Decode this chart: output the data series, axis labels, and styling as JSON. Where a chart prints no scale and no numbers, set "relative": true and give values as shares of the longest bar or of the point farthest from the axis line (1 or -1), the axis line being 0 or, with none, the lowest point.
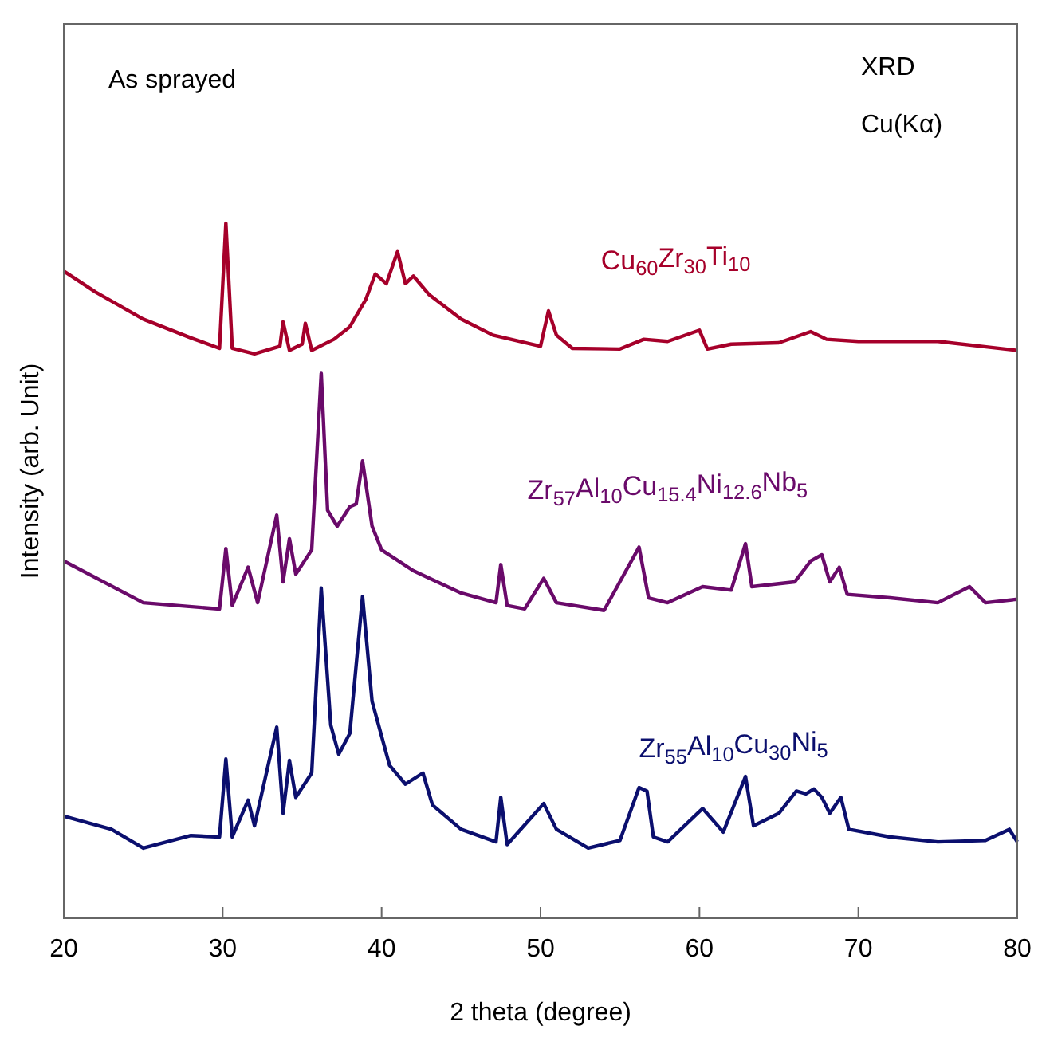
{
  "chart_data": {
    "type": "line",
    "relative": true,
    "xlabel": "2 theta (degree)",
    "ylabel": "Intensity (arb. Unit)",
    "xlim": [
      20,
      80
    ],
    "xticks": [
      20,
      30,
      40,
      50,
      60,
      70,
      80
    ],
    "grid": false,
    "legend": false,
    "marker": "none",
    "line_style": "solid",
    "annotations": [
      "As sprayed",
      "XRD",
      "Cu(Kα)"
    ],
    "series": [
      {
        "name": "Cu$_{60}$Zr$_{30}$Ti$_{10}$",
        "color": "#a6002a",
        "x": [
          20,
          22,
          25,
          28,
          29.8,
          30.2,
          30.6,
          32,
          33.6,
          33.8,
          34.2,
          35,
          35.2,
          35.6,
          37,
          38,
          39,
          39.6,
          40.3,
          41,
          41.5,
          42,
          43,
          45,
          47,
          50,
          50.5,
          51,
          52,
          55,
          56.5,
          58,
          60,
          60.5,
          62,
          65,
          67,
          68,
          70,
          75,
          80
        ],
        "values": [
          0.931,
          0.901,
          0.862,
          0.835,
          0.82,
          1.0,
          0.82,
          0.812,
          0.823,
          0.858,
          0.817,
          0.826,
          0.856,
          0.817,
          0.833,
          0.851,
          0.89,
          0.927,
          0.913,
          0.959,
          0.913,
          0.924,
          0.897,
          0.862,
          0.839,
          0.823,
          0.874,
          0.839,
          0.82,
          0.819,
          0.833,
          0.83,
          0.846,
          0.819,
          0.826,
          0.828,
          0.844,
          0.833,
          0.83,
          0.83,
          0.817
        ]
      },
      {
        "name": "Zr$_{57}$Al$_{10}$Cu$_{15.4}$Ni$_{12.6}$Nb$_{5}$",
        "color": "#6a0a6a",
        "x": [
          20,
          25,
          29.8,
          30.2,
          30.6,
          31.6,
          32.2,
          33.4,
          33.8,
          34.2,
          34.6,
          35.6,
          36.2,
          36.6,
          37.2,
          38,
          38.4,
          38.8,
          39.4,
          40,
          42,
          45,
          47.2,
          47.5,
          47.9,
          49,
          50.2,
          51,
          54,
          56.2,
          56.8,
          58,
          60.2,
          62,
          62.9,
          63.3,
          66,
          67,
          67.7,
          68.2,
          68.8,
          69.3,
          72,
          75,
          77,
          78,
          80
        ],
        "values": [
          0.514,
          0.454,
          0.445,
          0.532,
          0.45,
          0.505,
          0.454,
          0.58,
          0.484,
          0.546,
          0.495,
          0.53,
          0.784,
          0.587,
          0.564,
          0.592,
          0.596,
          0.658,
          0.564,
          0.53,
          0.5,
          0.468,
          0.454,
          0.509,
          0.45,
          0.445,
          0.489,
          0.454,
          0.443,
          0.534,
          0.461,
          0.454,
          0.477,
          0.472,
          0.539,
          0.477,
          0.484,
          0.514,
          0.523,
          0.484,
          0.505,
          0.466,
          0.461,
          0.454,
          0.477,
          0.454,
          0.459
        ]
      },
      {
        "name": "Zr$_{55}$Al$_{10}$Cu$_{30}$Ni$_{5}$",
        "color": "#0b0f6e",
        "x": [
          20,
          23,
          25,
          28,
          29.8,
          30.2,
          30.6,
          31.6,
          32,
          33.4,
          33.8,
          34.2,
          34.6,
          35.6,
          36.2,
          36.8,
          37.3,
          38,
          38.8,
          39.4,
          40.5,
          41.5,
          42.6,
          43.2,
          45,
          47.2,
          47.5,
          47.9,
          50.2,
          51,
          53,
          55,
          56.2,
          56.7,
          57.1,
          58,
          60.2,
          61.5,
          62.9,
          63.4,
          65,
          66.1,
          66.7,
          67.2,
          67.7,
          68.2,
          68.9,
          69.4,
          72,
          75,
          78,
          79.5,
          80
        ],
        "values": [
          0.147,
          0.128,
          0.101,
          0.119,
          0.117,
          0.229,
          0.117,
          0.17,
          0.133,
          0.275,
          0.151,
          0.227,
          0.174,
          0.209,
          0.475,
          0.278,
          0.236,
          0.266,
          0.463,
          0.312,
          0.22,
          0.193,
          0.209,
          0.163,
          0.128,
          0.11,
          0.174,
          0.106,
          0.165,
          0.128,
          0.101,
          0.112,
          0.188,
          0.183,
          0.117,
          0.11,
          0.158,
          0.124,
          0.204,
          0.133,
          0.151,
          0.183,
          0.179,
          0.186,
          0.174,
          0.151,
          0.174,
          0.128,
          0.117,
          0.11,
          0.112,
          0.128,
          0.11
        ]
      }
    ]
  }
}
